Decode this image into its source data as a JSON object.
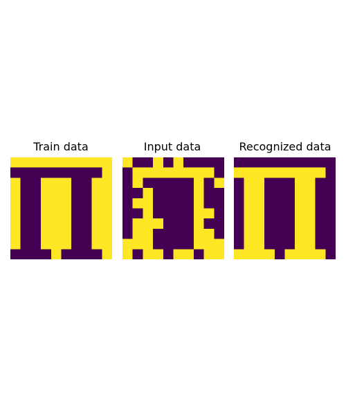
{
  "colors": {
    "on": "#fde725",
    "off": "#440154"
  },
  "chart_data": [
    {
      "type": "heatmap",
      "title": "Train data",
      "colormap": "viridis",
      "values": [
        [
          1,
          1,
          1,
          1,
          1,
          1,
          1,
          1,
          1,
          1
        ],
        [
          0,
          0,
          0,
          0,
          0,
          0,
          0,
          0,
          0,
          1
        ],
        [
          1,
          0,
          0,
          1,
          1,
          1,
          0,
          0,
          1,
          1
        ],
        [
          1,
          0,
          0,
          1,
          1,
          1,
          0,
          0,
          1,
          1
        ],
        [
          1,
          0,
          0,
          1,
          1,
          1,
          0,
          0,
          1,
          1
        ],
        [
          1,
          0,
          0,
          1,
          1,
          1,
          0,
          0,
          1,
          1
        ],
        [
          1,
          0,
          0,
          1,
          1,
          1,
          0,
          0,
          1,
          1
        ],
        [
          1,
          0,
          0,
          1,
          1,
          1,
          0,
          0,
          1,
          1
        ],
        [
          1,
          0,
          0,
          1,
          1,
          1,
          0,
          0,
          1,
          1
        ],
        [
          0,
          0,
          0,
          0,
          1,
          0,
          0,
          0,
          0,
          1
        ]
      ]
    },
    {
      "type": "heatmap",
      "title": "Input data",
      "colormap": "viridis",
      "values": [
        [
          1,
          0,
          0,
          1,
          0,
          1,
          0,
          0,
          0,
          0
        ],
        [
          0,
          1,
          1,
          1,
          1,
          1,
          1,
          1,
          1,
          0
        ],
        [
          0,
          1,
          0,
          0,
          0,
          0,
          0,
          1,
          0,
          1
        ],
        [
          0,
          0,
          1,
          0,
          0,
          0,
          0,
          1,
          0,
          0
        ],
        [
          0,
          1,
          1,
          0,
          0,
          0,
          0,
          1,
          0,
          0
        ],
        [
          0,
          0,
          1,
          0,
          0,
          0,
          0,
          1,
          1,
          0
        ],
        [
          0,
          1,
          1,
          1,
          0,
          0,
          0,
          1,
          0,
          0
        ],
        [
          0,
          1,
          1,
          0,
          0,
          0,
          0,
          1,
          1,
          0
        ],
        [
          1,
          1,
          1,
          0,
          0,
          0,
          0,
          1,
          1,
          1
        ],
        [
          1,
          0,
          1,
          1,
          0,
          1,
          1,
          0,
          1,
          1
        ]
      ]
    },
    {
      "type": "heatmap",
      "title": "Recognized data",
      "colormap": "viridis",
      "values": [
        [
          0,
          0,
          0,
          0,
          0,
          0,
          0,
          0,
          0,
          0
        ],
        [
          1,
          1,
          1,
          1,
          1,
          1,
          1,
          1,
          1,
          0
        ],
        [
          0,
          1,
          1,
          0,
          0,
          0,
          1,
          1,
          0,
          0
        ],
        [
          0,
          1,
          1,
          0,
          0,
          0,
          1,
          1,
          0,
          0
        ],
        [
          0,
          1,
          1,
          0,
          0,
          0,
          1,
          1,
          0,
          0
        ],
        [
          0,
          1,
          1,
          0,
          0,
          0,
          1,
          1,
          0,
          0
        ],
        [
          0,
          1,
          1,
          0,
          0,
          0,
          1,
          1,
          0,
          0
        ],
        [
          0,
          1,
          1,
          0,
          0,
          0,
          1,
          1,
          0,
          0
        ],
        [
          0,
          1,
          1,
          0,
          0,
          0,
          1,
          1,
          0,
          0
        ],
        [
          1,
          1,
          1,
          1,
          0,
          1,
          1,
          1,
          1,
          0
        ]
      ]
    }
  ]
}
